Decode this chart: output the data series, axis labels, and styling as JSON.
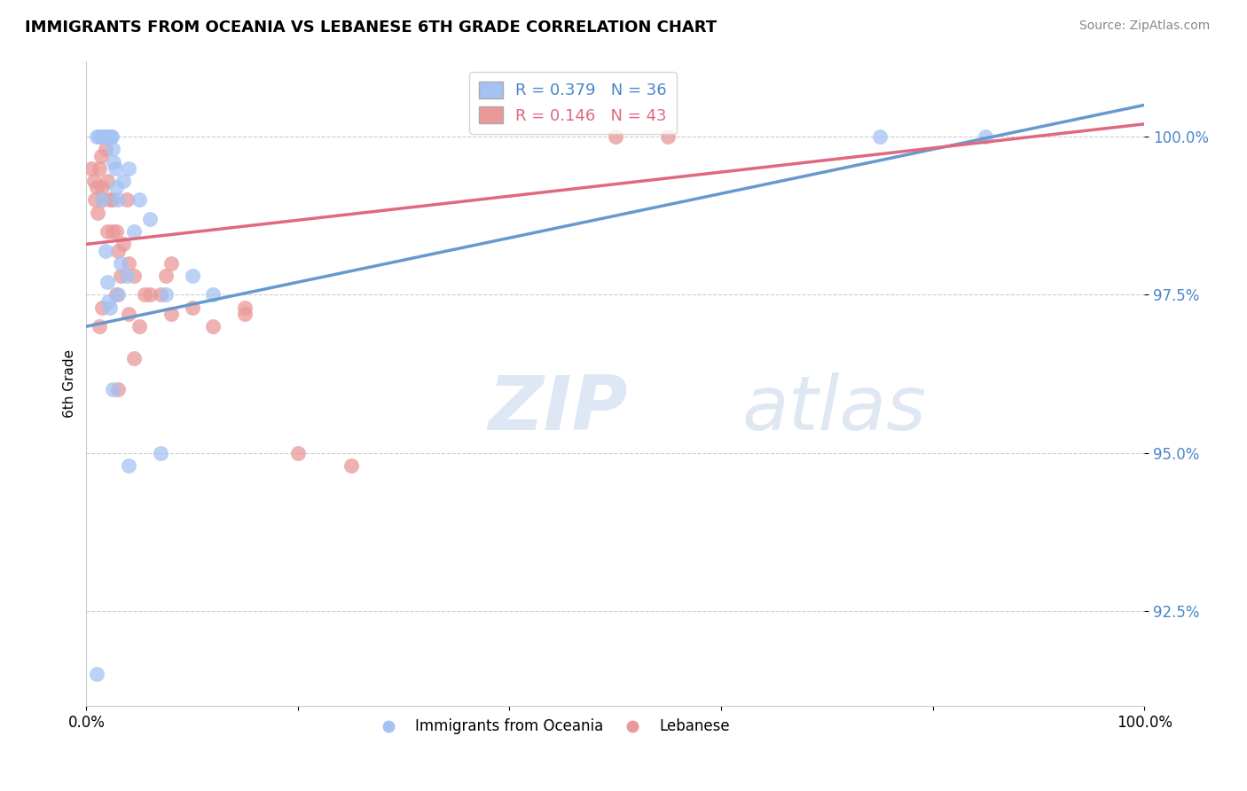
{
  "title": "IMMIGRANTS FROM OCEANIA VS LEBANESE 6TH GRADE CORRELATION CHART",
  "source": "Source: ZipAtlas.com",
  "ylabel": "6th Grade",
  "yticks": [
    92.5,
    95.0,
    97.5,
    100.0
  ],
  "ytick_labels": [
    "92.5%",
    "95.0%",
    "97.5%",
    "100.0%"
  ],
  "xlim": [
    0.0,
    100.0
  ],
  "ylim": [
    91.0,
    101.2
  ],
  "legend_blue_label": "R = 0.379   N = 36",
  "legend_pink_label": "R = 0.146   N = 43",
  "legend_blue_series": "Immigrants from Oceania",
  "legend_pink_series": "Lebanese",
  "blue_color": "#a4c2f4",
  "pink_color": "#ea9999",
  "blue_line_color": "#6699cc",
  "pink_line_color": "#e06880",
  "blue_line": [
    0.0,
    97.0,
    100.0,
    100.5
  ],
  "pink_line": [
    0.0,
    98.3,
    100.0,
    100.2
  ],
  "blue_scatter_x": [
    1.0,
    1.2,
    1.5,
    1.8,
    2.0,
    2.1,
    2.2,
    2.3,
    2.4,
    2.5,
    2.6,
    2.7,
    2.8,
    3.0,
    3.5,
    4.0,
    4.5,
    5.0,
    6.0,
    7.5,
    10.0,
    12.0,
    2.0,
    2.1,
    2.2,
    3.0,
    3.2,
    1.5,
    1.8,
    2.5,
    3.8,
    7.0,
    75.0,
    85.0,
    4.0,
    1.0
  ],
  "blue_scatter_y": [
    100.0,
    100.0,
    100.0,
    100.0,
    100.0,
    100.0,
    100.0,
    100.0,
    100.0,
    99.8,
    99.6,
    99.5,
    99.2,
    99.0,
    99.3,
    99.5,
    98.5,
    99.0,
    98.7,
    97.5,
    97.8,
    97.5,
    97.7,
    97.4,
    97.3,
    97.5,
    98.0,
    99.0,
    98.2,
    96.0,
    97.8,
    95.0,
    100.0,
    100.0,
    94.8,
    91.5
  ],
  "pink_scatter_x": [
    0.5,
    0.7,
    0.8,
    1.0,
    1.1,
    1.2,
    1.4,
    1.5,
    1.6,
    1.8,
    2.0,
    2.2,
    2.5,
    2.8,
    3.0,
    3.5,
    4.0,
    4.5,
    6.0,
    7.0,
    8.0,
    10.0,
    12.0,
    15.0,
    3.2,
    2.0,
    2.5,
    1.5,
    3.8,
    1.2,
    4.5,
    2.8,
    5.5,
    3.0,
    7.5,
    4.0,
    8.0,
    5.0,
    15.0,
    20.0,
    55.0,
    50.0,
    25.0
  ],
  "pink_scatter_y": [
    99.5,
    99.3,
    99.0,
    99.2,
    98.8,
    99.5,
    99.7,
    99.2,
    99.0,
    99.8,
    99.3,
    99.0,
    98.5,
    98.5,
    98.2,
    98.3,
    98.0,
    97.8,
    97.5,
    97.5,
    97.2,
    97.3,
    97.0,
    97.2,
    97.8,
    98.5,
    99.0,
    97.3,
    99.0,
    97.0,
    96.5,
    97.5,
    97.5,
    96.0,
    97.8,
    97.2,
    98.0,
    97.0,
    97.3,
    95.0,
    100.0,
    100.0,
    94.8
  ]
}
